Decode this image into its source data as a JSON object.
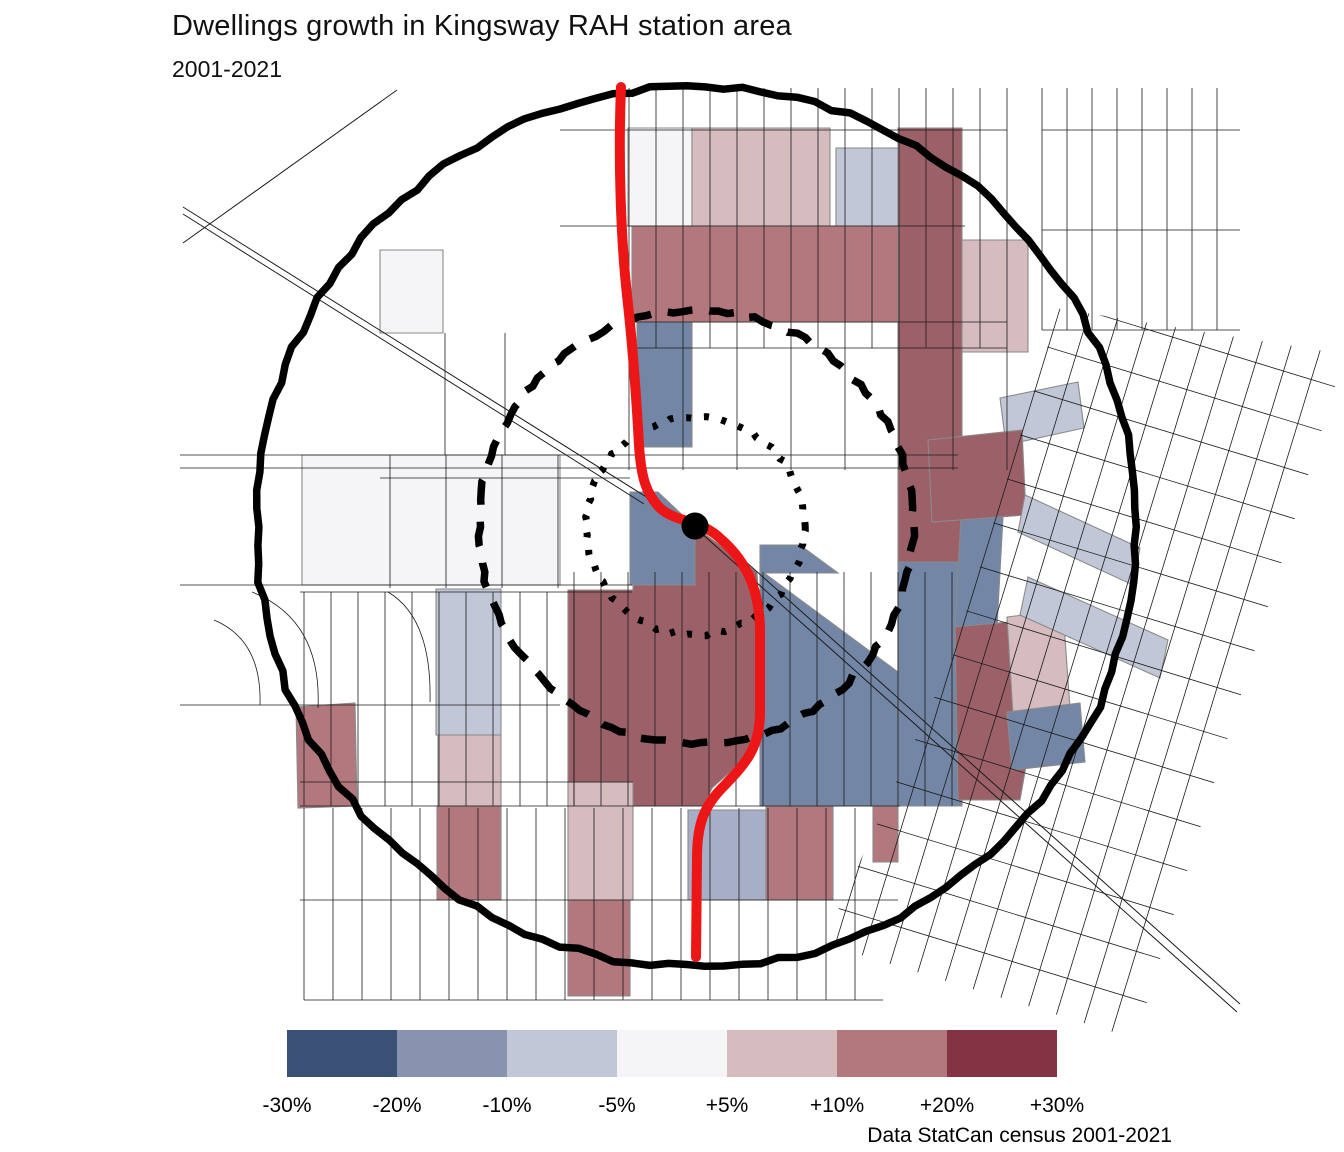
{
  "title": "Dwellings growth in Kingsway RAH station area",
  "subtitle": "2001-2021",
  "caption": "Data StatCan census 2001-2021",
  "legend": {
    "bins": [
      {
        "key": "bin1",
        "label_range": "-30% to -20%",
        "color": "#3a5074"
      },
      {
        "key": "bin2",
        "label_range": "-20% to -10%",
        "color": "#8894af"
      },
      {
        "key": "bin3",
        "label_range": "-10% to -5%",
        "color": "#c2c7d8"
      },
      {
        "key": "bin4",
        "label_range": "-5% to +5%",
        "color": "#f5f4f6"
      },
      {
        "key": "bin5",
        "label_range": "+5% to +10%",
        "color": "#d6bbbf"
      },
      {
        "key": "bin6",
        "label_range": "+10% to +20%",
        "color": "#b3787e"
      },
      {
        "key": "bin7",
        "label_range": "+20% to +30%",
        "color": "#833344"
      }
    ],
    "tick_labels": [
      "-30%",
      "-20%",
      "-10%",
      "-5%",
      "+5%",
      "+10%",
      "+20%",
      "+30%"
    ]
  },
  "map": {
    "station_marker_color": "#000000",
    "transit_line_color": "#ec1616",
    "buffer_ring_color": "#000000",
    "street_color": "#1b1b1b",
    "tract_boundary_color": "#8a8a8a",
    "extra_fills": {
      "red_deep": "#9c6168",
      "blue_deep": "#7486a6",
      "blue_mid": "#a6afc7"
    }
  }
}
